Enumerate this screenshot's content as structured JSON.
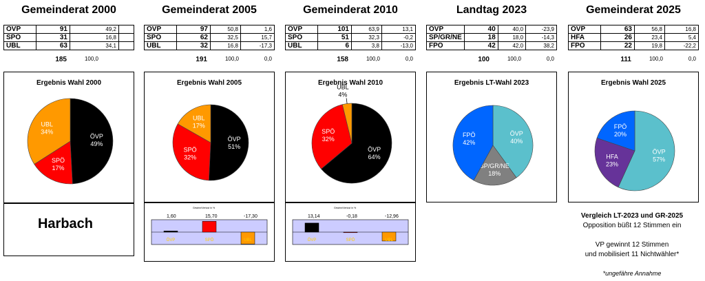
{
  "place": "Harbach",
  "chart_data": [
    {
      "type": "table",
      "title": "Gemeinderat 2000",
      "rows": [
        {
          "party": "ÖVP",
          "seats": "91",
          "pct": "49,2",
          "diff": ""
        },
        {
          "party": "SPÖ",
          "seats": "31",
          "pct": "16,8",
          "diff": ""
        },
        {
          "party": "UBL",
          "seats": "63",
          "pct": "34,1",
          "diff": ""
        }
      ],
      "total": {
        "seats": "185",
        "pct": "100,0",
        "diff": ""
      }
    },
    {
      "type": "table",
      "title": "Gemeinderat 2005",
      "rows": [
        {
          "party": "ÖVP",
          "seats": "97",
          "pct": "50,8",
          "diff": "1,6"
        },
        {
          "party": "SPÖ",
          "seats": "62",
          "pct": "32,5",
          "diff": "15,7"
        },
        {
          "party": "UBL",
          "seats": "32",
          "pct": "16,8",
          "diff": "-17,3"
        }
      ],
      "total": {
        "seats": "191",
        "pct": "100,0",
        "diff": "0,0"
      }
    },
    {
      "type": "table",
      "title": "Gemeinderat 2010",
      "rows": [
        {
          "party": "ÖVP",
          "seats": "101",
          "pct": "63,9",
          "diff": "13,1"
        },
        {
          "party": "SPÖ",
          "seats": "51",
          "pct": "32,3",
          "diff": "-0,2"
        },
        {
          "party": "UBL",
          "seats": "6",
          "pct": "3,8",
          "diff": "-13,0"
        }
      ],
      "total": {
        "seats": "158",
        "pct": "100,0",
        "diff": "0,0"
      }
    },
    {
      "type": "table",
      "title": "Landtag 2023",
      "rows": [
        {
          "party": "ÖVP",
          "seats": "40",
          "pct": "40,0",
          "diff": "-23,9"
        },
        {
          "party": "SP/GR/NE",
          "seats": "18",
          "pct": "18,0",
          "diff": "-14,3"
        },
        {
          "party": "FPÖ",
          "seats": "42",
          "pct": "42,0",
          "diff": "38,2"
        }
      ],
      "total": {
        "seats": "100",
        "pct": "100,0",
        "diff": "0,0"
      }
    },
    {
      "type": "table",
      "title": "Gemeinderat 2025",
      "rows": [
        {
          "party": "ÖVP",
          "seats": "63",
          "pct": "56,8",
          "diff": "16,8"
        },
        {
          "party": "HFA",
          "seats": "26",
          "pct": "23,4",
          "diff": "5,4"
        },
        {
          "party": "FPÖ",
          "seats": "22",
          "pct": "19,8",
          "diff": "-22,2"
        }
      ],
      "total": {
        "seats": "111",
        "pct": "100,0",
        "diff": "0,0"
      }
    },
    {
      "type": "pie",
      "title": "Ergebnis Wahl 2000",
      "slices": [
        {
          "label": "ÖVP",
          "value_label": "49%",
          "value": 49.2,
          "color": "#000000"
        },
        {
          "label": "SPÖ",
          "value_label": "17%",
          "value": 16.8,
          "color": "#ff0000"
        },
        {
          "label": "UBL",
          "value_label": "34%",
          "value": 34.1,
          "color": "#ff9900"
        }
      ]
    },
    {
      "type": "pie",
      "title": "Ergebnis Wahl 2005",
      "slices": [
        {
          "label": "ÖVP",
          "value_label": "51%",
          "value": 50.8,
          "color": "#000000"
        },
        {
          "label": "SPÖ",
          "value_label": "32%",
          "value": 32.5,
          "color": "#ff0000"
        },
        {
          "label": "UBL",
          "value_label": "17%",
          "value": 16.8,
          "color": "#ff9900"
        }
      ]
    },
    {
      "type": "pie",
      "title": "Ergebnis Wahl 2010",
      "slices": [
        {
          "label": "ÖVP",
          "value_label": "64%",
          "value": 63.9,
          "color": "#000000"
        },
        {
          "label": "SPÖ",
          "value_label": "32%",
          "value": 32.3,
          "color": "#ff0000"
        },
        {
          "label": "UBL",
          "value_label": "4%",
          "value": 3.8,
          "color": "#ff9900"
        }
      ]
    },
    {
      "type": "pie",
      "title": "Ergebnis LT-Wahl 2023",
      "slices": [
        {
          "label": "ÖVP",
          "value_label": "40%",
          "value": 40.0,
          "color": "#5bc0cc"
        },
        {
          "label": "SP/GR/NE",
          "value_label": "18%",
          "value": 18.0,
          "color": "#808080"
        },
        {
          "label": "FPÖ",
          "value_label": "42%",
          "value": 42.0,
          "color": "#0066ff"
        }
      ]
    },
    {
      "type": "pie",
      "title": "Ergebnis Wahl 2025",
      "slices": [
        {
          "label": "ÖVP",
          "value_label": "57%",
          "value": 56.8,
          "color": "#5bc0cc"
        },
        {
          "label": "HFA",
          "value_label": "23%",
          "value": 23.4,
          "color": "#663399"
        },
        {
          "label": "FPÖ",
          "value_label": "20%",
          "value": 19.8,
          "color": "#0066ff"
        }
      ]
    },
    {
      "type": "bar",
      "title": "Gewinn/Verlust in %",
      "categories": [
        "ÖVP",
        "SPÖ",
        "UBL"
      ],
      "values": [
        1.6,
        15.7,
        -17.3
      ],
      "value_labels": [
        "1,60",
        "15,70",
        "-17,30"
      ],
      "colors": [
        "#000000",
        "#ff0000",
        "#ff9900"
      ]
    },
    {
      "type": "bar",
      "title": "Gewinn/Verlust in %",
      "categories": [
        "ÖVP",
        "SPÖ",
        "UBL"
      ],
      "values": [
        13.14,
        -0.18,
        -12.96
      ],
      "value_labels": [
        "13,14",
        "-0,18",
        "-12,96"
      ],
      "colors": [
        "#000000",
        "#ff0000",
        "#ff9900"
      ]
    }
  ],
  "notes": {
    "title": "Vergleich LT-2023 und GR-2025",
    "line1": "Opposition büßt 12 Stimmen ein",
    "line2": "VP gewinnt 12 Stimmen",
    "line3": "und mobilisiert 11 Nichtwähler*",
    "footnote": "*ungefähre Annahme"
  }
}
